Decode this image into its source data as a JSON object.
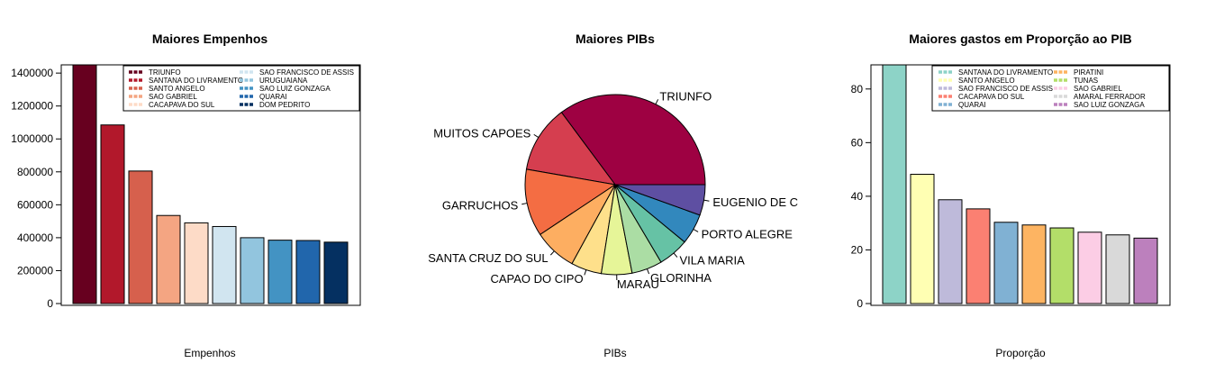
{
  "chart_data": [
    {
      "type": "bar",
      "title": "Maiores Empenhos",
      "xlabel": "Empenhos",
      "ylabel": "",
      "ylim": [
        0,
        1450000
      ],
      "yticks": [
        0,
        200000,
        400000,
        600000,
        800000,
        1000000,
        1200000,
        1400000
      ],
      "ytick_labels": [
        "0",
        "200000",
        "400000",
        "600000",
        "800000",
        "1000000",
        "1200000",
        "1400000"
      ],
      "categories": [
        "TRIUNFO",
        "SANTANA DO LIVRAMENTO",
        "SANTO ANGELO",
        "SAO GABRIEL",
        "CACAPAVA DO SUL",
        "SAO FRANCISCO DE ASSIS",
        "URUGUAIANA",
        "SAO LUIZ GONZAGA",
        "QUARAI",
        "DOM PEDRITO"
      ],
      "values": [
        1450000,
        1085000,
        805000,
        535000,
        490000,
        468000,
        400000,
        385000,
        383000,
        373000
      ],
      "colors": [
        "#67001f",
        "#b2182b",
        "#d6604d",
        "#f4a582",
        "#fddbc7",
        "#d1e5f0",
        "#92c5de",
        "#4393c3",
        "#2166ac",
        "#053061"
      ],
      "legend": {
        "position": "top-right",
        "labels": [
          "TRIUNFO",
          "SANTANA DO LIVRAMENTO",
          "SANTO ANGELO",
          "SAO GABRIEL",
          "CACAPAVA DO SUL",
          "SAO FRANCISCO DE ASSIS",
          "URUGUAIANA",
          "SAO LUIZ GONZAGA",
          "QUARAI",
          "DOM PEDRITO"
        ]
      }
    },
    {
      "type": "pie",
      "title": "Maiores PIBs",
      "xlabel": "PIBs",
      "labels": [
        "TRIUNFO",
        "MUITOS CAPOES",
        "GARRUCHOS",
        "SANTA CRUZ DO SUL",
        "CAPAO DO CIPO",
        "MARAU",
        "GLORINHA",
        "VILA MARIA",
        "PORTO ALEGRE",
        "EUGENIO DE C"
      ],
      "values": [
        32,
        11,
        11,
        7,
        5,
        5,
        5,
        5,
        5,
        5
      ],
      "colors": [
        "#9e0142",
        "#d53e4f",
        "#f46d43",
        "#fdae61",
        "#fee08b",
        "#e6f598",
        "#abdda4",
        "#66c2a5",
        "#3288bd",
        "#5e4fa2"
      ]
    },
    {
      "type": "bar",
      "title": "Maiores gastos em Proporção ao PIB",
      "xlabel": "Proporção",
      "ylabel": "",
      "ylim": [
        0,
        89
      ],
      "yticks": [
        0,
        20,
        40,
        60,
        80
      ],
      "ytick_labels": [
        "0",
        "20",
        "40",
        "60",
        "80"
      ],
      "categories": [
        "SANTANA DO LIVRAMENTO",
        "SANTO ANGELO",
        "SAO FRANCISCO DE ASSIS",
        "CACAPAVA DO SUL",
        "QUARAI",
        "PIRATINI",
        "TUNAS",
        "SAO GABRIEL",
        "AMARAL FERRADOR",
        "SAO LUIZ GONZAGA"
      ],
      "values": [
        89,
        48.2,
        38.7,
        35.3,
        30.3,
        29.3,
        28.2,
        26.6,
        25.6,
        24.4
      ],
      "colors": [
        "#8dd3c7",
        "#ffffb3",
        "#bebada",
        "#fb8072",
        "#80b1d3",
        "#fdb462",
        "#b3de69",
        "#fccde5",
        "#d9d9d9",
        "#bc80bd"
      ],
      "legend": {
        "position": "top-right",
        "labels": [
          "SANTANA DO LIVRAMENTO",
          "SANTO ANGELO",
          "SAO FRANCISCO DE ASSIS",
          "CACAPAVA DO SUL",
          "QUARAI",
          "PIRATINI",
          "TUNAS",
          "SAO GABRIEL",
          "AMARAL FERRADOR",
          "SAO LUIZ GONZAGA"
        ]
      }
    }
  ]
}
